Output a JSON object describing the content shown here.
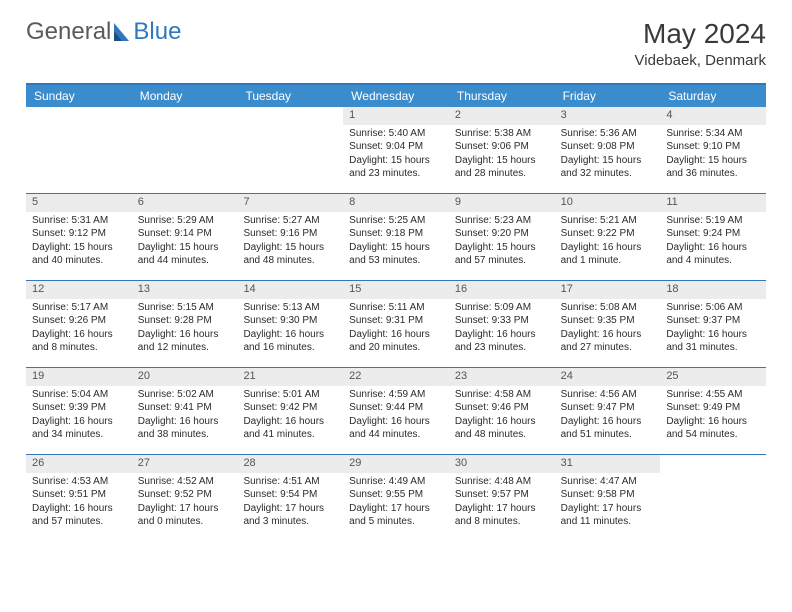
{
  "brand": {
    "general": "General",
    "blue": "Blue"
  },
  "title": "May 2024",
  "location": "Videbaek, Denmark",
  "colors": {
    "header_bg": "#3b8ccc",
    "border": "#2f78bd",
    "daynum_bg": "#ececec",
    "text": "#2b2b2b"
  },
  "day_names": [
    "Sunday",
    "Monday",
    "Tuesday",
    "Wednesday",
    "Thursday",
    "Friday",
    "Saturday"
  ],
  "weeks": [
    [
      null,
      null,
      null,
      {
        "n": "1",
        "sr": "Sunrise: 5:40 AM",
        "ss": "Sunset: 9:04 PM",
        "dl1": "Daylight: 15 hours",
        "dl2": "and 23 minutes."
      },
      {
        "n": "2",
        "sr": "Sunrise: 5:38 AM",
        "ss": "Sunset: 9:06 PM",
        "dl1": "Daylight: 15 hours",
        "dl2": "and 28 minutes."
      },
      {
        "n": "3",
        "sr": "Sunrise: 5:36 AM",
        "ss": "Sunset: 9:08 PM",
        "dl1": "Daylight: 15 hours",
        "dl2": "and 32 minutes."
      },
      {
        "n": "4",
        "sr": "Sunrise: 5:34 AM",
        "ss": "Sunset: 9:10 PM",
        "dl1": "Daylight: 15 hours",
        "dl2": "and 36 minutes."
      }
    ],
    [
      {
        "n": "5",
        "sr": "Sunrise: 5:31 AM",
        "ss": "Sunset: 9:12 PM",
        "dl1": "Daylight: 15 hours",
        "dl2": "and 40 minutes."
      },
      {
        "n": "6",
        "sr": "Sunrise: 5:29 AM",
        "ss": "Sunset: 9:14 PM",
        "dl1": "Daylight: 15 hours",
        "dl2": "and 44 minutes."
      },
      {
        "n": "7",
        "sr": "Sunrise: 5:27 AM",
        "ss": "Sunset: 9:16 PM",
        "dl1": "Daylight: 15 hours",
        "dl2": "and 48 minutes."
      },
      {
        "n": "8",
        "sr": "Sunrise: 5:25 AM",
        "ss": "Sunset: 9:18 PM",
        "dl1": "Daylight: 15 hours",
        "dl2": "and 53 minutes."
      },
      {
        "n": "9",
        "sr": "Sunrise: 5:23 AM",
        "ss": "Sunset: 9:20 PM",
        "dl1": "Daylight: 15 hours",
        "dl2": "and 57 minutes."
      },
      {
        "n": "10",
        "sr": "Sunrise: 5:21 AM",
        "ss": "Sunset: 9:22 PM",
        "dl1": "Daylight: 16 hours",
        "dl2": "and 1 minute."
      },
      {
        "n": "11",
        "sr": "Sunrise: 5:19 AM",
        "ss": "Sunset: 9:24 PM",
        "dl1": "Daylight: 16 hours",
        "dl2": "and 4 minutes."
      }
    ],
    [
      {
        "n": "12",
        "sr": "Sunrise: 5:17 AM",
        "ss": "Sunset: 9:26 PM",
        "dl1": "Daylight: 16 hours",
        "dl2": "and 8 minutes."
      },
      {
        "n": "13",
        "sr": "Sunrise: 5:15 AM",
        "ss": "Sunset: 9:28 PM",
        "dl1": "Daylight: 16 hours",
        "dl2": "and 12 minutes."
      },
      {
        "n": "14",
        "sr": "Sunrise: 5:13 AM",
        "ss": "Sunset: 9:30 PM",
        "dl1": "Daylight: 16 hours",
        "dl2": "and 16 minutes."
      },
      {
        "n": "15",
        "sr": "Sunrise: 5:11 AM",
        "ss": "Sunset: 9:31 PM",
        "dl1": "Daylight: 16 hours",
        "dl2": "and 20 minutes."
      },
      {
        "n": "16",
        "sr": "Sunrise: 5:09 AM",
        "ss": "Sunset: 9:33 PM",
        "dl1": "Daylight: 16 hours",
        "dl2": "and 23 minutes."
      },
      {
        "n": "17",
        "sr": "Sunrise: 5:08 AM",
        "ss": "Sunset: 9:35 PM",
        "dl1": "Daylight: 16 hours",
        "dl2": "and 27 minutes."
      },
      {
        "n": "18",
        "sr": "Sunrise: 5:06 AM",
        "ss": "Sunset: 9:37 PM",
        "dl1": "Daylight: 16 hours",
        "dl2": "and 31 minutes."
      }
    ],
    [
      {
        "n": "19",
        "sr": "Sunrise: 5:04 AM",
        "ss": "Sunset: 9:39 PM",
        "dl1": "Daylight: 16 hours",
        "dl2": "and 34 minutes."
      },
      {
        "n": "20",
        "sr": "Sunrise: 5:02 AM",
        "ss": "Sunset: 9:41 PM",
        "dl1": "Daylight: 16 hours",
        "dl2": "and 38 minutes."
      },
      {
        "n": "21",
        "sr": "Sunrise: 5:01 AM",
        "ss": "Sunset: 9:42 PM",
        "dl1": "Daylight: 16 hours",
        "dl2": "and 41 minutes."
      },
      {
        "n": "22",
        "sr": "Sunrise: 4:59 AM",
        "ss": "Sunset: 9:44 PM",
        "dl1": "Daylight: 16 hours",
        "dl2": "and 44 minutes."
      },
      {
        "n": "23",
        "sr": "Sunrise: 4:58 AM",
        "ss": "Sunset: 9:46 PM",
        "dl1": "Daylight: 16 hours",
        "dl2": "and 48 minutes."
      },
      {
        "n": "24",
        "sr": "Sunrise: 4:56 AM",
        "ss": "Sunset: 9:47 PM",
        "dl1": "Daylight: 16 hours",
        "dl2": "and 51 minutes."
      },
      {
        "n": "25",
        "sr": "Sunrise: 4:55 AM",
        "ss": "Sunset: 9:49 PM",
        "dl1": "Daylight: 16 hours",
        "dl2": "and 54 minutes."
      }
    ],
    [
      {
        "n": "26",
        "sr": "Sunrise: 4:53 AM",
        "ss": "Sunset: 9:51 PM",
        "dl1": "Daylight: 16 hours",
        "dl2": "and 57 minutes."
      },
      {
        "n": "27",
        "sr": "Sunrise: 4:52 AM",
        "ss": "Sunset: 9:52 PM",
        "dl1": "Daylight: 17 hours",
        "dl2": "and 0 minutes."
      },
      {
        "n": "28",
        "sr": "Sunrise: 4:51 AM",
        "ss": "Sunset: 9:54 PM",
        "dl1": "Daylight: 17 hours",
        "dl2": "and 3 minutes."
      },
      {
        "n": "29",
        "sr": "Sunrise: 4:49 AM",
        "ss": "Sunset: 9:55 PM",
        "dl1": "Daylight: 17 hours",
        "dl2": "and 5 minutes."
      },
      {
        "n": "30",
        "sr": "Sunrise: 4:48 AM",
        "ss": "Sunset: 9:57 PM",
        "dl1": "Daylight: 17 hours",
        "dl2": "and 8 minutes."
      },
      {
        "n": "31",
        "sr": "Sunrise: 4:47 AM",
        "ss": "Sunset: 9:58 PM",
        "dl1": "Daylight: 17 hours",
        "dl2": "and 11 minutes."
      },
      null
    ]
  ]
}
